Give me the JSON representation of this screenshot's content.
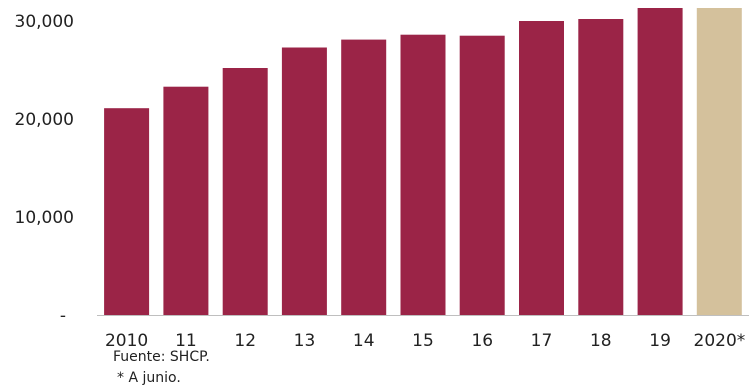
{
  "chart_data": {
    "type": "bar",
    "categories": [
      "2010",
      "11",
      "12",
      "13",
      "14",
      "15",
      "16",
      "17",
      "18",
      "19",
      "2020*"
    ],
    "values": [
      21100,
      23300,
      25200,
      27300,
      28100,
      28600,
      28500,
      30000,
      30200,
      31500,
      31500
    ],
    "bar_colors": [
      "#9b2447",
      "#9b2447",
      "#9b2447",
      "#9b2447",
      "#9b2447",
      "#9b2447",
      "#9b2447",
      "#9b2447",
      "#9b2447",
      "#9b2447",
      "#d4c19c"
    ],
    "y_ticks": [
      {
        "value": 0,
        "label": "-"
      },
      {
        "value": 10000,
        "label": "10,000"
      },
      {
        "value": 20000,
        "label": "20,000"
      },
      {
        "value": 30000,
        "label": "30,000"
      }
    ],
    "ylim": [
      0,
      31500
    ],
    "title": "",
    "xlabel": "",
    "ylabel": "",
    "grid": false,
    "legend": "none"
  },
  "notes": {
    "source": "Fuente: SHCP.",
    "footnote": "* A junio."
  },
  "colors": {
    "primary_bar": "#9b2447",
    "highlight_bar": "#d4c19c",
    "axis": "#bfbfbf"
  }
}
